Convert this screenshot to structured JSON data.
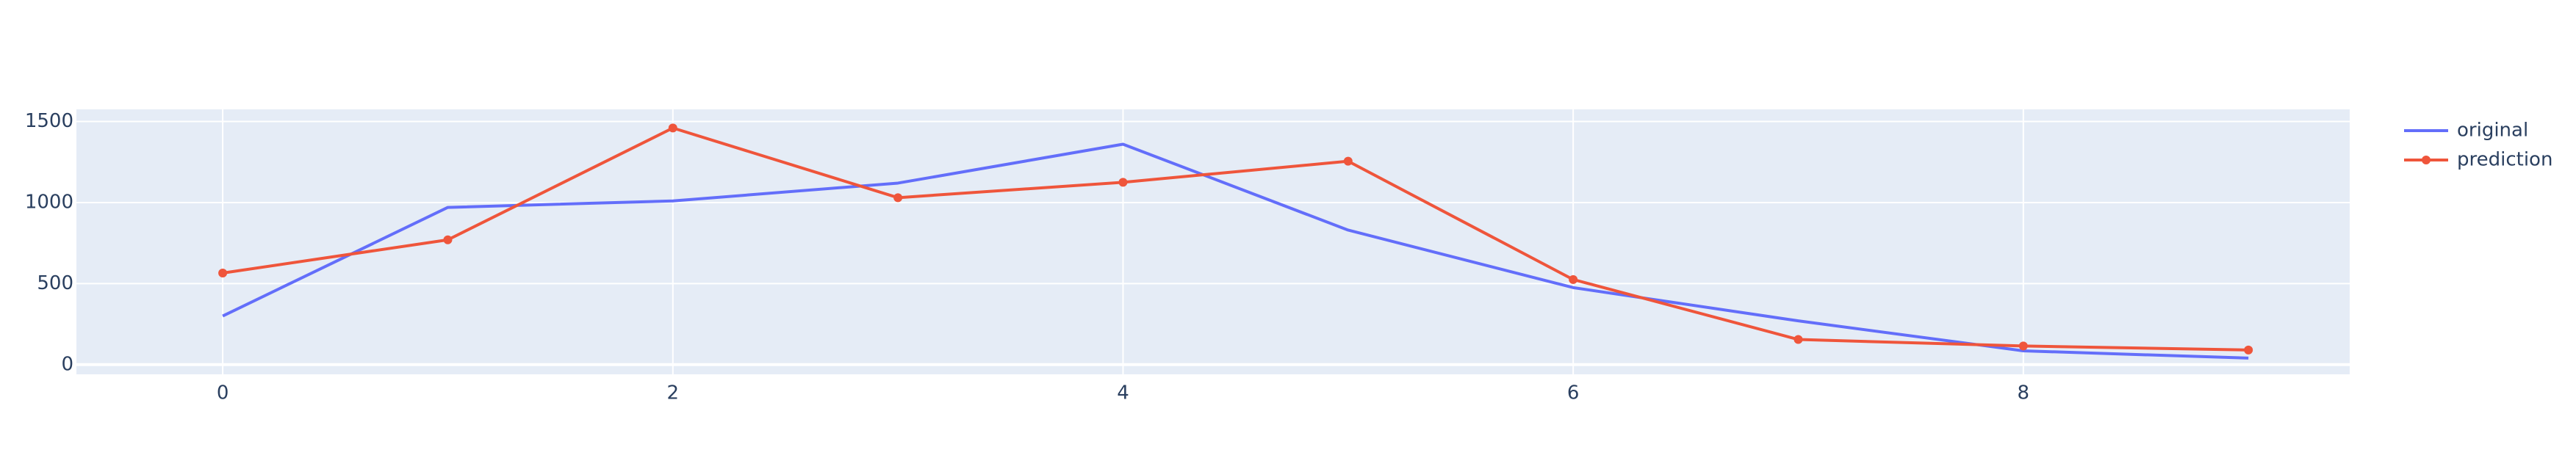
{
  "chart_data": {
    "type": "line",
    "title": "",
    "xlabel": "",
    "ylabel": "",
    "xlim": [
      -0.65,
      9.45
    ],
    "ylim": [
      -60,
      1575
    ],
    "x_ticks": [
      0,
      2,
      4,
      6,
      8
    ],
    "y_ticks": [
      0,
      500,
      1000,
      1500
    ],
    "grid": true,
    "legend_position": "top-right",
    "plot_background": "#e5ecf6",
    "series": [
      {
        "name": "original",
        "color": "#636efa",
        "mode": "lines",
        "x": [
          0,
          1,
          2,
          3,
          4,
          5,
          6,
          7,
          8,
          9
        ],
        "values": [
          300,
          970,
          1010,
          1120,
          1360,
          830,
          475,
          270,
          85,
          40
        ]
      },
      {
        "name": "prediction",
        "color": "#ef553b",
        "mode": "lines+markers",
        "x": [
          0,
          1,
          2,
          3,
          4,
          5,
          6,
          7,
          8,
          9
        ],
        "values": [
          565,
          770,
          1460,
          1030,
          1125,
          1255,
          525,
          155,
          115,
          90
        ]
      }
    ]
  }
}
